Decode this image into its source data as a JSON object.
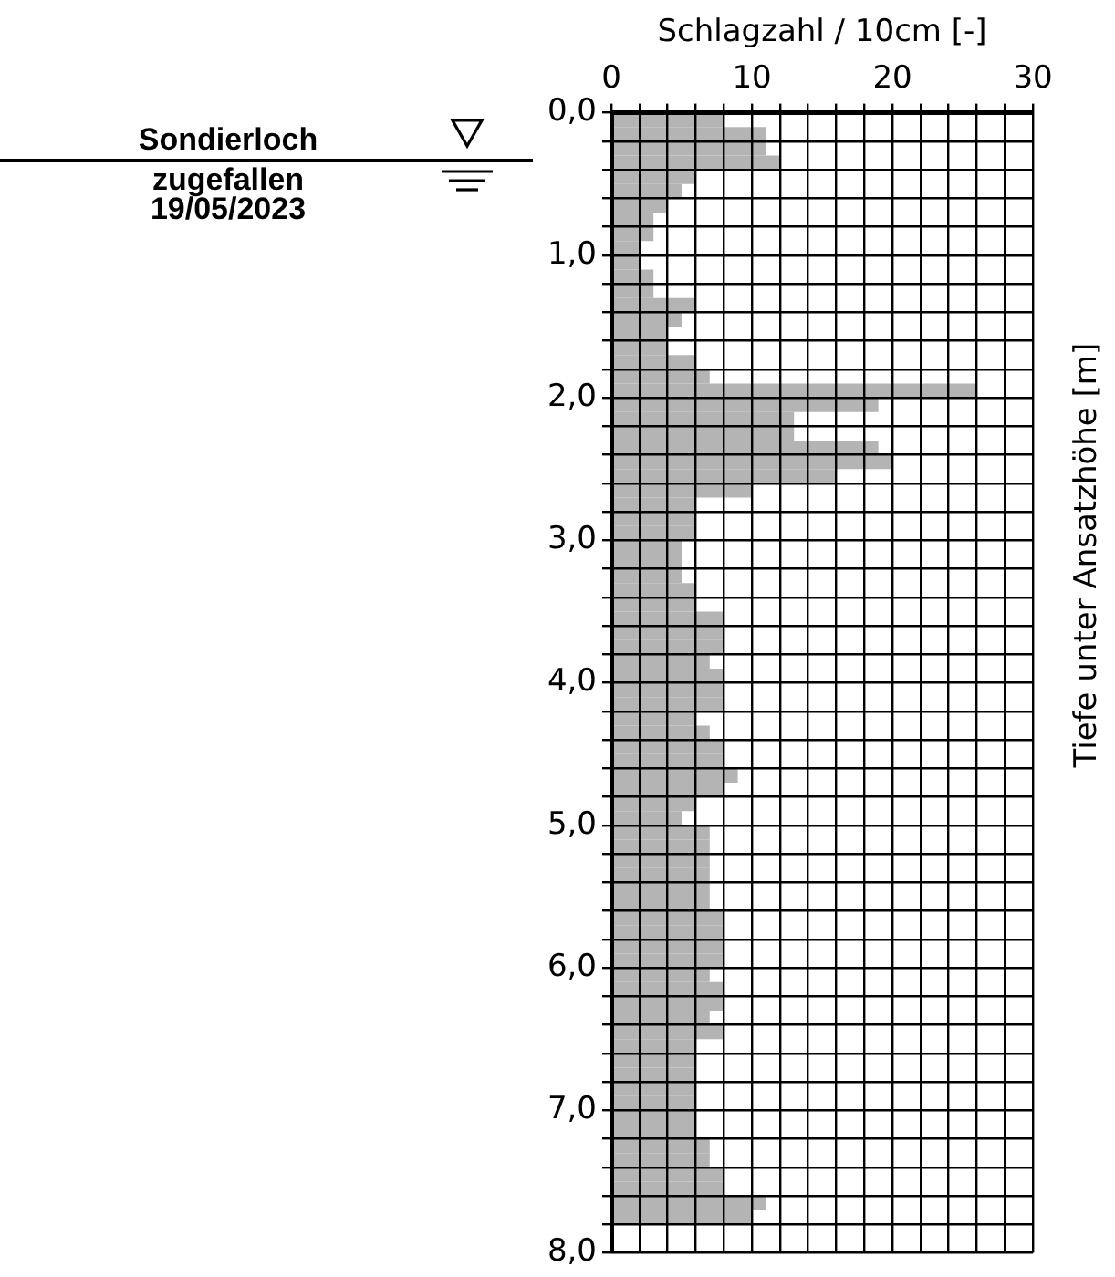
{
  "chart_data": {
    "type": "histogram",
    "orientation": "horizontal",
    "xlabel": "Schlagzahl / 10cm [-]",
    "ylabel": "Tiefe unter Ansatzhöhe [m]",
    "color": "#b4b4b4",
    "bins": [
      0,
      0.1,
      0.2,
      0.3,
      0.4,
      0.5,
      0.6,
      0.7,
      0.8,
      0.9,
      1,
      1.1,
      1.2,
      1.3,
      1.4,
      1.5,
      1.6,
      1.7,
      1.8,
      1.9,
      2,
      2.1,
      2.2,
      2.3,
      2.4,
      2.5,
      2.6,
      2.7,
      2.8,
      2.9,
      3,
      3.1,
      3.2,
      3.3,
      3.4,
      3.5,
      3.6,
      3.7,
      3.8,
      3.9,
      4,
      4.1,
      4.2,
      4.3,
      4.4,
      4.5,
      4.6,
      4.7,
      4.8,
      4.9,
      5,
      5.1,
      5.2,
      5.3,
      5.4,
      5.5,
      5.6,
      5.7,
      5.8,
      5.9,
      6,
      6.1,
      6.2,
      6.3,
      6.4,
      6.5,
      6.6,
      6.7,
      6.8,
      6.9,
      7,
      7.1,
      7.2,
      7.3,
      7.4,
      7.5,
      7.6,
      7.7,
      7.8
    ],
    "values": [
      8,
      11,
      11,
      12,
      6,
      5,
      4,
      3,
      3,
      2,
      2,
      3,
      3,
      6,
      5,
      4,
      4,
      6,
      7,
      26,
      19,
      13,
      13,
      19,
      20,
      16,
      10,
      6,
      6,
      6,
      5,
      5,
      5,
      6,
      6,
      8,
      8,
      8,
      7,
      8,
      8,
      8,
      6,
      7,
      8,
      8,
      9,
      8,
      6,
      5,
      7,
      7,
      7,
      7,
      7,
      7,
      8,
      8,
      8,
      8,
      7,
      8,
      8,
      7,
      8,
      6,
      6,
      6,
      6,
      6,
      6,
      6,
      7,
      7,
      8,
      8,
      11,
      10
    ],
    "xlim": [
      0,
      30
    ],
    "xticks": [
      0,
      {
        "value": 2,
        "label": null
      },
      {
        "value": 4,
        "label": null
      },
      {
        "value": 6,
        "label": null
      },
      {
        "value": 8,
        "label": null
      },
      10,
      {
        "value": 12,
        "label": null
      },
      {
        "value": 14,
        "label": null
      },
      {
        "value": 16,
        "label": null
      },
      {
        "value": 18,
        "label": null
      },
      20,
      {
        "value": 22,
        "label": null
      },
      {
        "value": 24,
        "label": null
      },
      {
        "value": 26,
        "label": null
      },
      {
        "value": 28,
        "label": null
      },
      30
    ],
    "ylim": [
      8,
      0
    ],
    "yticks": [
      {
        "value": 0,
        "label": "0,0"
      },
      {
        "value": 0.2,
        "label": null
      },
      {
        "value": 0.4,
        "label": null
      },
      {
        "value": 0.6,
        "label": null
      },
      {
        "value": 0.8,
        "label": null
      },
      {
        "value": 1,
        "label": "1,0"
      },
      {
        "value": 1.2,
        "label": null
      },
      {
        "value": 1.4,
        "label": null
      },
      {
        "value": 1.6,
        "label": null
      },
      {
        "value": 1.8,
        "label": null
      },
      {
        "value": 2,
        "label": "2,0"
      },
      {
        "value": 2.2,
        "label": null
      },
      {
        "value": 2.4,
        "label": null
      },
      {
        "value": 2.6,
        "label": null
      },
      {
        "value": 2.8,
        "label": null
      },
      {
        "value": 3,
        "label": "3,0"
      },
      {
        "value": 3.2,
        "label": null
      },
      {
        "value": 3.4,
        "label": null
      },
      {
        "value": 3.6,
        "label": null
      },
      {
        "value": 3.8,
        "label": null
      },
      {
        "value": 4,
        "label": "4,0"
      },
      {
        "value": 4.2,
        "label": null
      },
      {
        "value": 4.4,
        "label": null
      },
      {
        "value": 4.6,
        "label": null
      },
      {
        "value": 4.8,
        "label": null
      },
      {
        "value": 5,
        "label": "5,0"
      },
      {
        "value": 5.2,
        "label": null
      },
      {
        "value": 5.4,
        "label": null
      },
      {
        "value": 5.6,
        "label": null
      },
      {
        "value": 5.8,
        "label": null
      },
      {
        "value": 6,
        "label": "6,0"
      },
      {
        "value": 6.2,
        "label": null
      },
      {
        "value": 6.4,
        "label": null
      },
      {
        "value": 6.6,
        "label": null
      },
      {
        "value": 6.8,
        "label": null
      },
      {
        "value": 7,
        "label": "7,0"
      },
      {
        "value": 7.2,
        "label": null
      },
      {
        "value": 7.4,
        "label": null
      },
      {
        "value": 7.6,
        "label": null
      },
      {
        "value": 7.8,
        "label": null
      },
      {
        "value": 8,
        "label": "8,0"
      }
    ],
    "grid": true,
    "annotations": [
      "Sondierloch\nzugefallen\n19/05/2023"
    ]
  }
}
